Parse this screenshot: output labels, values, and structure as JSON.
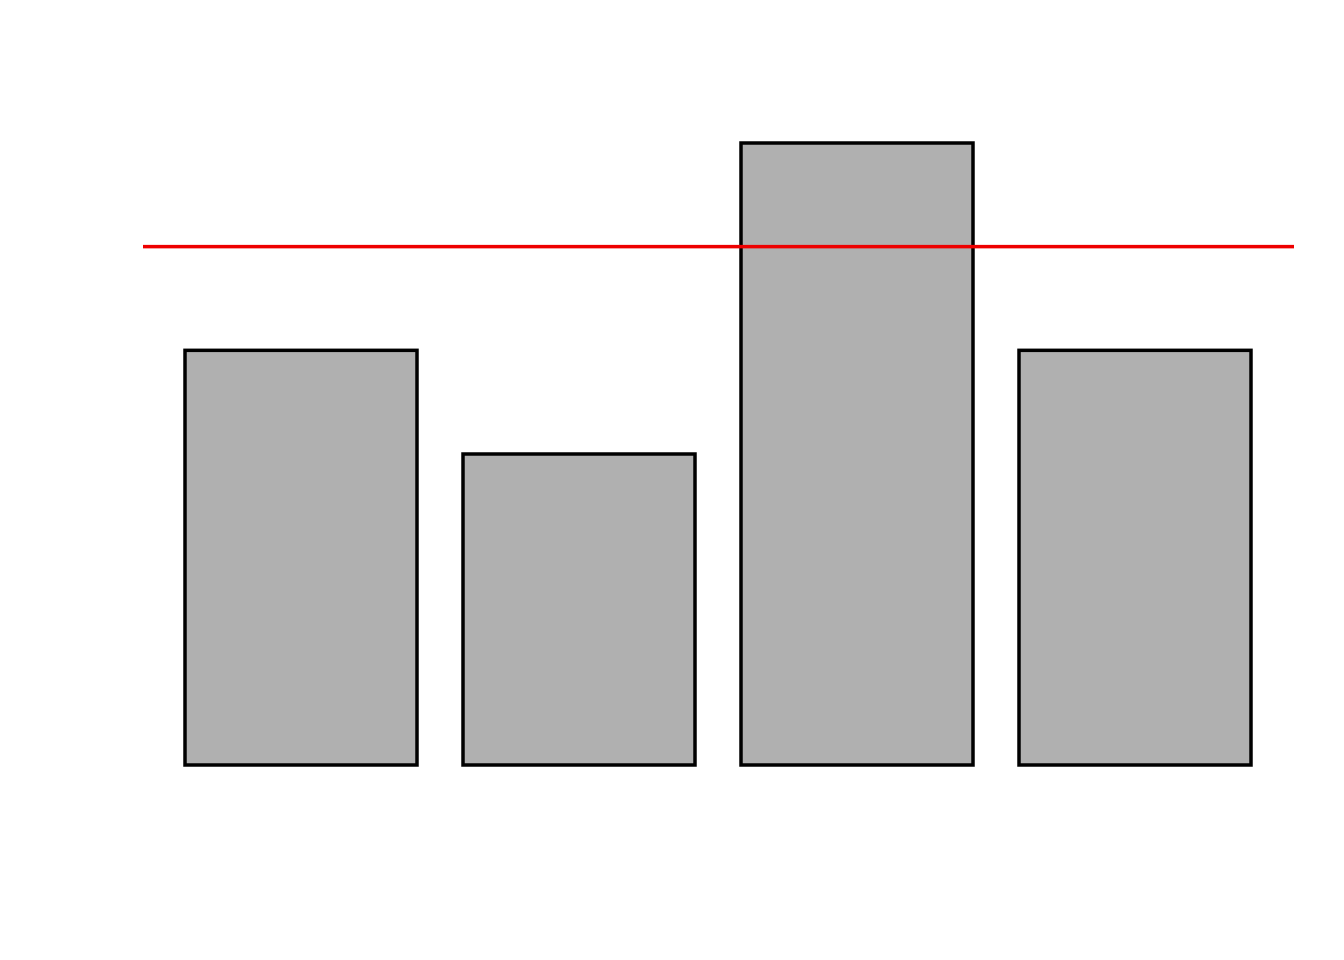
{
  "chart_data": {
    "type": "bar",
    "categories": [
      "",
      "",
      "",
      ""
    ],
    "values": [
      4,
      3,
      6,
      4
    ],
    "reference_line": {
      "y": 5
    },
    "title": "",
    "xlabel": "",
    "ylabel": "",
    "ylim": [
      0,
      6
    ],
    "grid": false,
    "legend": "none"
  },
  "colors": {
    "bar_fill": "#b0b0b0",
    "bar_stroke": "#000000",
    "reference_line": "#ee0000",
    "background": "#ffffff"
  }
}
